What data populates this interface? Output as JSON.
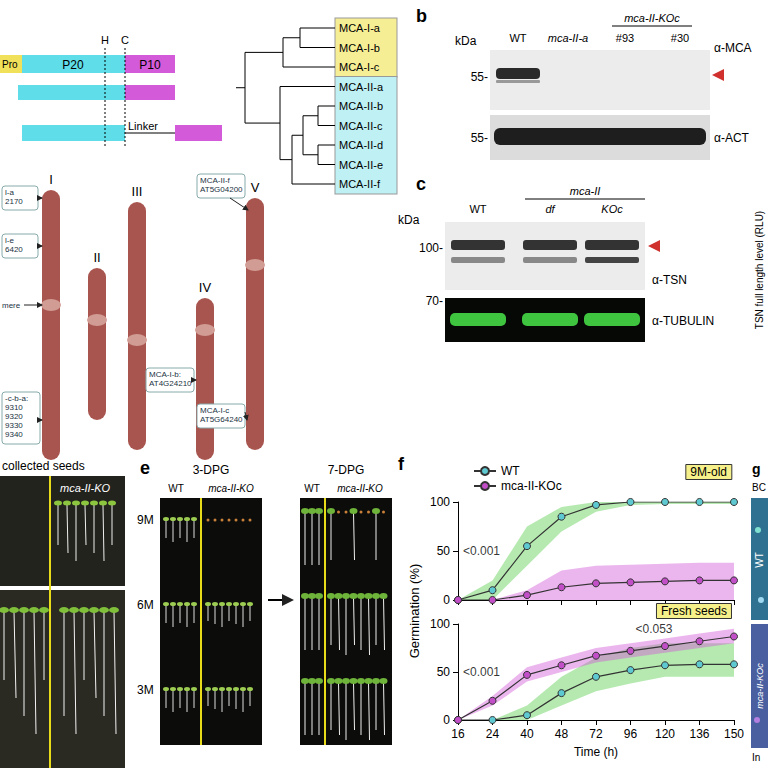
{
  "panel_a": {
    "domains": [
      "Pro",
      "P20",
      "P10"
    ],
    "sites": [
      "H",
      "C"
    ],
    "linker": "Linker",
    "tree": {
      "type_I": [
        "MCA-I-a",
        "MCA-I-b",
        "MCA-I-c"
      ],
      "type_II": [
        "MCA-II-a",
        "MCA-II-b",
        "MCA-II-c",
        "MCA-II-d",
        "MCA-II-e",
        "MCA-II-f"
      ]
    }
  },
  "chromosomes": {
    "names": [
      "I",
      "II",
      "III",
      "IV",
      "V"
    ],
    "labels": [
      [
        "l-a",
        "2170"
      ],
      [
        "l-e",
        "6420"
      ],
      [
        "mere"
      ],
      [
        "-c-b-a:",
        "9310",
        "9320",
        "9330",
        "9340"
      ],
      [
        "MCA-I-b:",
        "AT4G24210"
      ],
      [
        "MCA-I-c",
        "AT5G64240"
      ],
      [
        "MCA-II-f",
        "AT5G04200"
      ]
    ]
  },
  "panel_b": {
    "letter": "b",
    "unit": "kDa",
    "markers": [
      "55-",
      "55-"
    ],
    "group": "mca-II-KOc",
    "lanes": [
      "WT",
      "mca-II-a",
      "#93",
      "#30"
    ],
    "antibodies": [
      "α-MCA",
      "α-ACT"
    ]
  },
  "panel_c": {
    "letter": "c",
    "unit": "kDa",
    "markers": [
      "100-",
      "70-"
    ],
    "group": "mca-II",
    "lanes": [
      "WT",
      "df",
      "KOc"
    ],
    "antibodies": [
      "α-TSN",
      "α-TUBULIN"
    ],
    "side_axis_label": "TSN full length level (RLU)"
  },
  "seedlings": {
    "title": "collected seeds",
    "genotype": "mca-II-KO"
  },
  "panel_e": {
    "letter": "e",
    "stages": [
      "3-DPG",
      "7-DPG"
    ],
    "genotypes": [
      "WT",
      "mca-II-KO"
    ],
    "ages": [
      "9M",
      "6M",
      "3M"
    ]
  },
  "panel_f": {
    "letter": "f",
    "ylabel": "Germination (%)"
  },
  "panel_g": {
    "letter": "g",
    "header": "BC",
    "rows": [
      "WT",
      "mca-II-KOc"
    ],
    "footer": "In"
  },
  "chart_data": [
    {
      "type": "line",
      "title": "9M-old",
      "categories": [
        "16",
        "24",
        "40",
        "48",
        "72",
        "96",
        "120",
        "136",
        "150"
      ],
      "ylim": [
        0,
        100
      ],
      "yticks": [
        0,
        50,
        100
      ],
      "grid": false,
      "tick_labels": "y",
      "legend": "upper left",
      "marker": "circle",
      "series": [
        {
          "name": "WT",
          "color": "#5fc9d1",
          "values": [
            0,
            10,
            55,
            85,
            97,
            100,
            100,
            100,
            100
          ],
          "lower": [
            0,
            0,
            35,
            70,
            90,
            97,
            98,
            98,
            98
          ],
          "upper": [
            0,
            20,
            75,
            95,
            100,
            100,
            100,
            100,
            100
          ]
        },
        {
          "name": "mca-II-KOc",
          "color": "#c24fc8",
          "values": [
            0,
            0,
            5,
            13,
            17,
            18,
            19,
            20,
            20
          ],
          "lower": [
            0,
            0,
            0,
            0,
            0,
            0,
            0,
            0,
            0
          ],
          "upper": [
            0,
            0,
            10,
            30,
            35,
            36,
            37,
            38,
            38
          ]
        }
      ],
      "annotations": [
        {
          "text": "<0.001",
          "x": "16",
          "y": 50
        }
      ]
    },
    {
      "type": "line",
      "title": "Fresh seeds",
      "xlabel": "Time (h)",
      "categories": [
        "16",
        "24",
        "40",
        "48",
        "72",
        "96",
        "120",
        "136",
        "150"
      ],
      "ylim": [
        0,
        100
      ],
      "yticks": [
        0,
        50,
        100
      ],
      "grid": false,
      "marker": "circle",
      "series": [
        {
          "name": "WT",
          "color": "#5fc9d1",
          "values": [
            0,
            0,
            5,
            28,
            45,
            52,
            57,
            58,
            58
          ],
          "lower": [
            0,
            0,
            0,
            15,
            30,
            38,
            45,
            45,
            45
          ],
          "upper": [
            0,
            0,
            15,
            45,
            65,
            75,
            80,
            80,
            80
          ]
        },
        {
          "name": "mca-II-KOc",
          "color": "#c24fc8",
          "values": [
            0,
            20,
            47,
            57,
            67,
            72,
            77,
            82,
            87
          ],
          "lower": [
            0,
            15,
            40,
            50,
            60,
            65,
            70,
            75,
            80
          ],
          "upper": [
            0,
            25,
            55,
            65,
            75,
            80,
            85,
            90,
            95
          ]
        }
      ],
      "annotations": [
        {
          "text": "<0.001",
          "x": "16",
          "y": 50
        },
        {
          "text": "<0.053",
          "x": "96",
          "y": 95
        }
      ]
    }
  ]
}
